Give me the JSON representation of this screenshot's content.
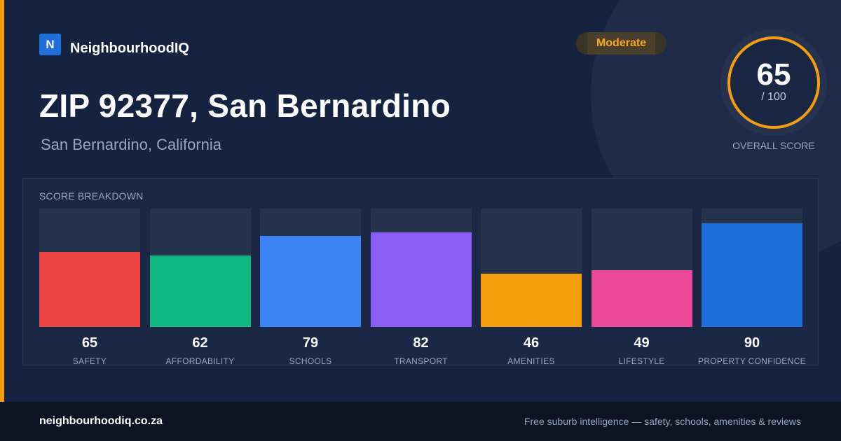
{
  "brand": {
    "logo_letter": "N",
    "name": "NeighbourhoodIQ"
  },
  "badge": {
    "label": "Moderate",
    "color": "#f5a623"
  },
  "title": "ZIP 92377, San Bernardino",
  "subtitle": "San Bernardino, California",
  "overall_score": {
    "value": "65",
    "max_label": "/ 100",
    "caption": "OVERALL SCORE",
    "ring_color": "#f59e0b"
  },
  "breakdown": {
    "label": "SCORE BREAKDOWN"
  },
  "chart_data": {
    "type": "bar",
    "title": "SCORE BREAKDOWN",
    "categories": [
      "SAFETY",
      "AFFORDABILITY",
      "SCHOOLS",
      "TRANSPORT",
      "AMENITIES",
      "LIFESTYLE",
      "PROPERTY CONFIDENCE"
    ],
    "values": [
      65,
      62,
      79,
      82,
      46,
      49,
      90
    ],
    "colors": [
      "#ef4444",
      "#10b981",
      "#3b82f6",
      "#8b5cf6",
      "#f59e0b",
      "#ec4899",
      "#1d6fdc"
    ],
    "ylim": [
      0,
      100
    ],
    "xlabel": "",
    "ylabel": ""
  },
  "footer": {
    "domain": "neighbourhoodiq.co.za",
    "tagline": "Free suburb intelligence — safety, schools, amenities & reviews"
  }
}
